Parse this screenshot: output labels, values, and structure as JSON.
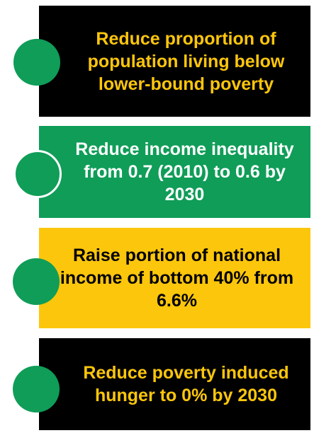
{
  "colors": {
    "black_card": "#000000",
    "green_card": "#0f9d58",
    "yellow_card": "#fcc60c",
    "gold_text": "#fcc60c",
    "white_text": "#ffffff",
    "dark_text": "#000000",
    "circle_green": "#0f9d58"
  },
  "goals": [
    {
      "text": "Reduce proportion of\npopulation living below\nlower-bound poverty"
    },
    {
      "text": "Reduce income inequality\nfrom 0.7 (2010) to 0.6 by\n2030"
    },
    {
      "text": "Raise portion of national\nincome of bottom 40% from\n6.6%"
    },
    {
      "text": "Reduce poverty induced\nhunger to 0% by 2030"
    }
  ]
}
